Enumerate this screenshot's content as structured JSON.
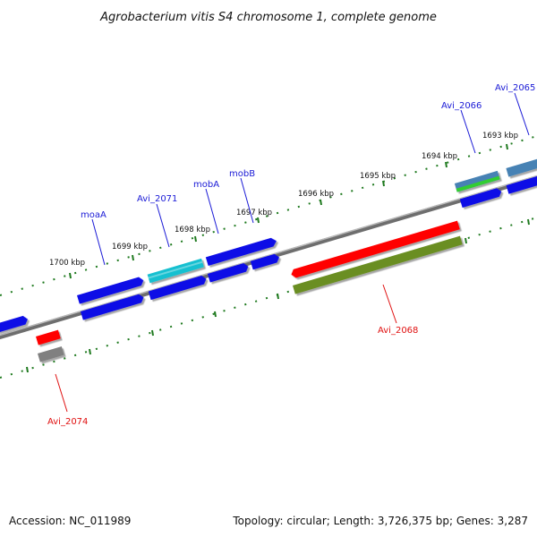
{
  "title": "Agrobacterium vitis S4 chromosome 1, complete genome",
  "footer": {
    "accession": "Accession: NC_011989",
    "topology": "Topology: circular; Length: 3,726,375 bp; Genes: 3,287"
  },
  "scale": {
    "ticks": [
      {
        "label": "1700 kbp"
      },
      {
        "label": "1699 kbp"
      },
      {
        "label": "1698 kbp"
      },
      {
        "label": "1697 kbp"
      },
      {
        "label": "1696 kbp"
      },
      {
        "label": "1695 kbp"
      },
      {
        "label": "1694 kbp"
      },
      {
        "label": "1693 kbp"
      }
    ]
  },
  "gene_labels": [
    {
      "text": "moaA",
      "color": "#1a1ad6"
    },
    {
      "text": "Avi_2071",
      "color": "#1a1ad6"
    },
    {
      "text": "mobA",
      "color": "#1a1ad6"
    },
    {
      "text": "mobB",
      "color": "#1a1ad6"
    },
    {
      "text": "Avi_2066",
      "color": "#1a1ad6"
    },
    {
      "text": "Avi_2065",
      "color": "#1a1ad6"
    },
    {
      "text": "Avi_2068",
      "color": "#e01010"
    },
    {
      "text": "Avi_2074",
      "color": "#e01010"
    }
  ],
  "colors": {
    "cds_blue": "#0a0ae6",
    "rna_red": "#ff0000",
    "pseudo_olive": "#6b8e23",
    "trna_cyan": "#19c0d0",
    "misc_gray": "#808080",
    "steel_blue": "#4682b4",
    "green": "#32cd32",
    "scale_green": "#1f7a1f",
    "backbone": "#777777"
  }
}
